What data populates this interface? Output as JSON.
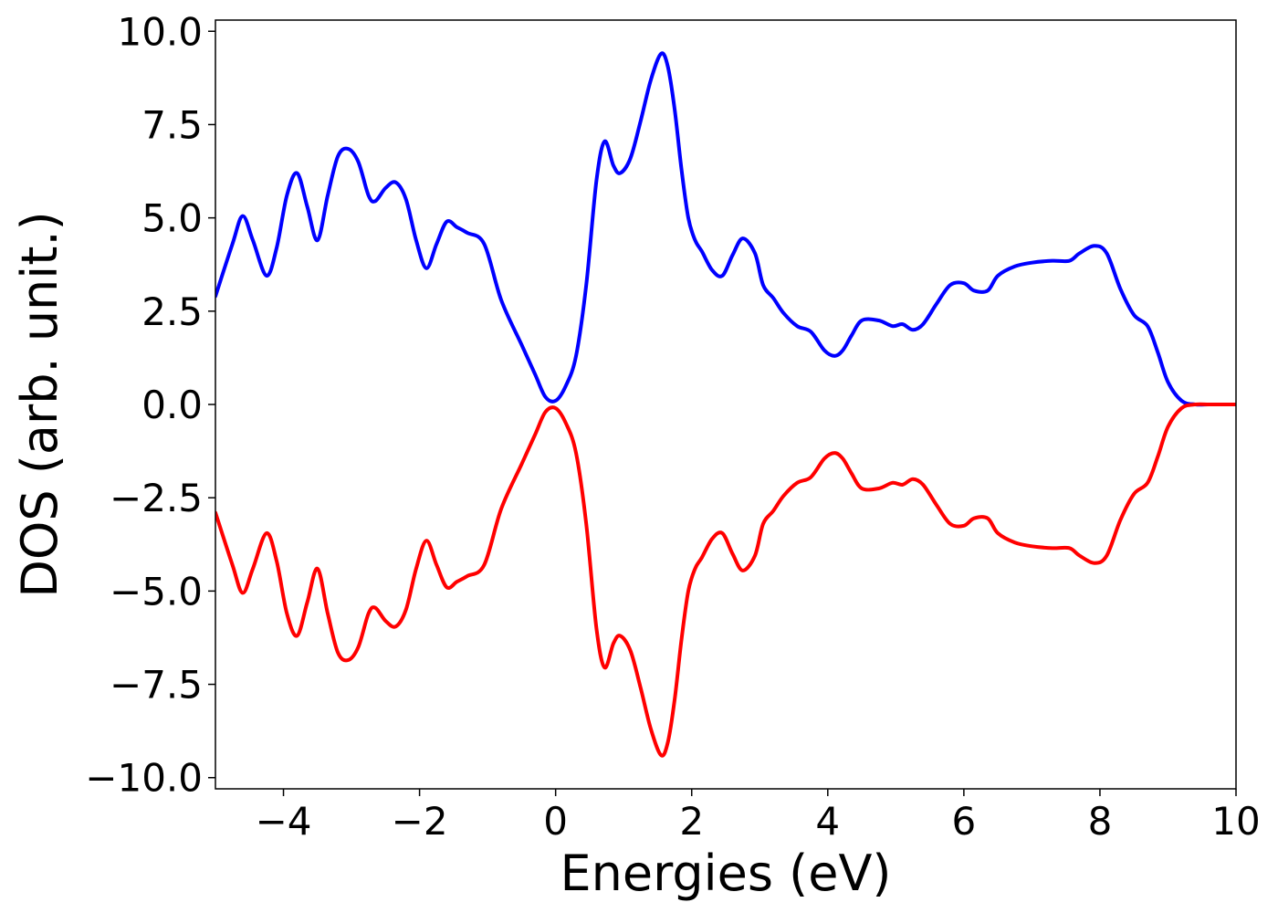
{
  "chart_data": {
    "type": "line",
    "title": "",
    "xlabel": "Energies (eV)",
    "ylabel": "DOS (arb. unit.)",
    "xlim": [
      -5,
      10
    ],
    "ylim": [
      -10.3,
      10.3
    ],
    "grid": false,
    "legend": "none",
    "x_ticks": [
      -4,
      -2,
      0,
      2,
      4,
      6,
      8,
      10
    ],
    "x_tick_labels": [
      "−4",
      "−2",
      "0",
      "2",
      "4",
      "6",
      "8",
      "10"
    ],
    "y_ticks": [
      10,
      7.5,
      5,
      2.5,
      0,
      -2.5,
      -5,
      -7.5,
      -10
    ],
    "y_tick_labels": [
      "10.0",
      "7.5",
      "5.0",
      "2.5",
      "0.0",
      "−2.5",
      "−5.0",
      "−7.5",
      "−10.0"
    ],
    "series": [
      {
        "color": "#0000ff",
        "x": [
          -5.0,
          -4.75,
          -4.6,
          -4.45,
          -4.25,
          -4.1,
          -3.95,
          -3.8,
          -3.65,
          -3.5,
          -3.35,
          -3.2,
          -3.05,
          -2.9,
          -2.75,
          -2.65,
          -2.5,
          -2.35,
          -2.2,
          -2.05,
          -1.9,
          -1.75,
          -1.6,
          -1.45,
          -1.3,
          -1.05,
          -0.8,
          -0.5,
          -0.3,
          -0.15,
          0.0,
          0.15,
          0.3,
          0.45,
          0.6,
          0.72,
          0.85,
          0.95,
          1.1,
          1.25,
          1.4,
          1.55,
          1.65,
          1.75,
          1.85,
          1.95,
          2.05,
          2.15,
          2.3,
          2.45,
          2.6,
          2.75,
          2.93,
          3.05,
          3.2,
          3.35,
          3.55,
          3.75,
          3.95,
          4.1,
          4.22,
          4.35,
          4.5,
          4.75,
          4.95,
          5.1,
          5.25,
          5.4,
          5.6,
          5.8,
          6.0,
          6.15,
          6.35,
          6.5,
          6.75,
          7.0,
          7.3,
          7.55,
          7.7,
          7.92,
          8.1,
          8.3,
          8.5,
          8.7,
          8.85,
          9.0,
          9.2,
          9.4,
          9.6,
          9.8,
          10.0
        ],
        "values": [
          2.9,
          4.3,
          5.05,
          4.4,
          3.45,
          4.2,
          5.6,
          6.2,
          5.3,
          4.4,
          5.6,
          6.65,
          6.85,
          6.5,
          5.6,
          5.45,
          5.8,
          5.95,
          5.5,
          4.4,
          3.65,
          4.3,
          4.9,
          4.75,
          4.6,
          4.3,
          2.8,
          1.6,
          0.8,
          0.2,
          0.1,
          0.5,
          1.3,
          3.2,
          6.0,
          7.05,
          6.4,
          6.2,
          6.6,
          7.6,
          8.7,
          9.4,
          9.05,
          7.9,
          6.3,
          5.0,
          4.4,
          4.1,
          3.6,
          3.45,
          4.0,
          4.45,
          4.05,
          3.2,
          2.85,
          2.45,
          2.1,
          1.95,
          1.45,
          1.3,
          1.45,
          1.85,
          2.25,
          2.25,
          2.1,
          2.15,
          2.0,
          2.15,
          2.7,
          3.2,
          3.25,
          3.05,
          3.05,
          3.45,
          3.7,
          3.8,
          3.85,
          3.85,
          4.05,
          4.25,
          4.05,
          3.1,
          2.4,
          2.1,
          1.4,
          0.6,
          0.1,
          0.0,
          0.0,
          0.0,
          0.0
        ]
      },
      {
        "color": "#ff0000",
        "x": [
          -5.0,
          -4.75,
          -4.6,
          -4.45,
          -4.25,
          -4.1,
          -3.95,
          -3.8,
          -3.65,
          -3.5,
          -3.35,
          -3.2,
          -3.05,
          -2.9,
          -2.75,
          -2.65,
          -2.5,
          -2.35,
          -2.2,
          -2.05,
          -1.9,
          -1.75,
          -1.6,
          -1.45,
          -1.3,
          -1.05,
          -0.8,
          -0.5,
          -0.3,
          -0.15,
          0.0,
          0.15,
          0.3,
          0.45,
          0.6,
          0.72,
          0.85,
          0.95,
          1.1,
          1.25,
          1.4,
          1.55,
          1.65,
          1.75,
          1.85,
          1.95,
          2.05,
          2.15,
          2.3,
          2.45,
          2.6,
          2.75,
          2.93,
          3.05,
          3.2,
          3.35,
          3.55,
          3.75,
          3.95,
          4.1,
          4.22,
          4.35,
          4.5,
          4.75,
          4.95,
          5.1,
          5.25,
          5.4,
          5.6,
          5.8,
          6.0,
          6.15,
          6.35,
          6.5,
          6.75,
          7.0,
          7.3,
          7.55,
          7.7,
          7.92,
          8.1,
          8.3,
          8.5,
          8.7,
          8.85,
          9.0,
          9.2,
          9.4,
          9.6,
          9.8,
          10.0
        ],
        "values": [
          -2.9,
          -4.3,
          -5.05,
          -4.4,
          -3.45,
          -4.2,
          -5.6,
          -6.2,
          -5.3,
          -4.4,
          -5.6,
          -6.65,
          -6.85,
          -6.5,
          -5.6,
          -5.45,
          -5.8,
          -5.95,
          -5.5,
          -4.4,
          -3.65,
          -4.3,
          -4.9,
          -4.75,
          -4.6,
          -4.3,
          -2.8,
          -1.6,
          -0.8,
          -0.2,
          -0.1,
          -0.5,
          -1.3,
          -3.2,
          -6.0,
          -7.05,
          -6.4,
          -6.2,
          -6.6,
          -7.6,
          -8.7,
          -9.4,
          -9.05,
          -7.9,
          -6.3,
          -5.0,
          -4.4,
          -4.1,
          -3.6,
          -3.45,
          -4.0,
          -4.45,
          -4.05,
          -3.2,
          -2.85,
          -2.45,
          -2.1,
          -1.95,
          -1.45,
          -1.3,
          -1.45,
          -1.85,
          -2.25,
          -2.25,
          -2.1,
          -2.15,
          -2.0,
          -2.15,
          -2.7,
          -3.2,
          -3.25,
          -3.05,
          -3.05,
          -3.45,
          -3.7,
          -3.8,
          -3.85,
          -3.85,
          -4.05,
          -4.25,
          -4.05,
          -3.1,
          -2.4,
          -2.1,
          -1.4,
          -0.6,
          -0.1,
          0.0,
          0.0,
          0.0,
          0.0
        ]
      }
    ]
  }
}
